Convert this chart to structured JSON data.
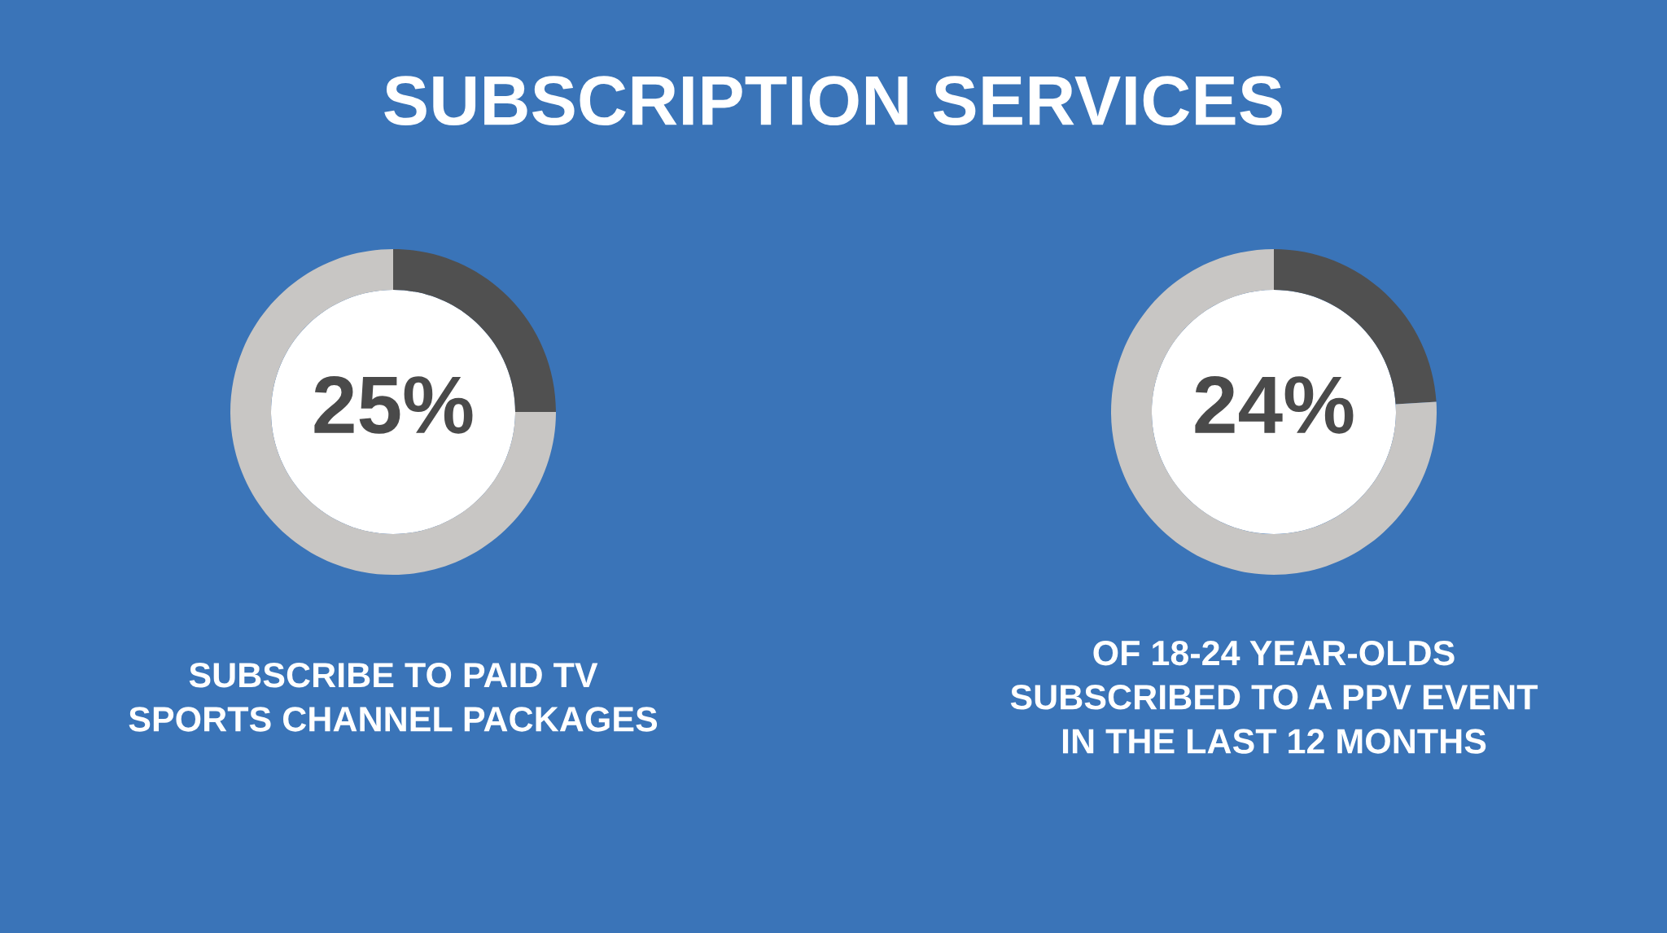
{
  "chart_data": [
    {
      "type": "donut",
      "title": "SUBSCRIPTION SERVICES",
      "categories": [
        null,
        null
      ],
      "values": [
        25,
        75
      ],
      "colors": [
        "#505050",
        "#c8c6c4"
      ],
      "value_labels": [
        "25%",
        null
      ],
      "annotations": [
        "SUBSCRIBE TO PAID TV\nSPORTS CHANNEL PACKAGES"
      ]
    },
    {
      "type": "donut",
      "categories": [
        null,
        null
      ],
      "values": [
        24,
        76
      ],
      "colors": [
        "#505050",
        "#c8c6c4"
      ],
      "value_labels": [
        "24%",
        null
      ],
      "annotations": [
        "OF 18-24 YEAR-OLDS\nSUBSCRIBED TO A PPV EVENT\nIN THE LAST 12 MONTHS"
      ]
    }
  ]
}
